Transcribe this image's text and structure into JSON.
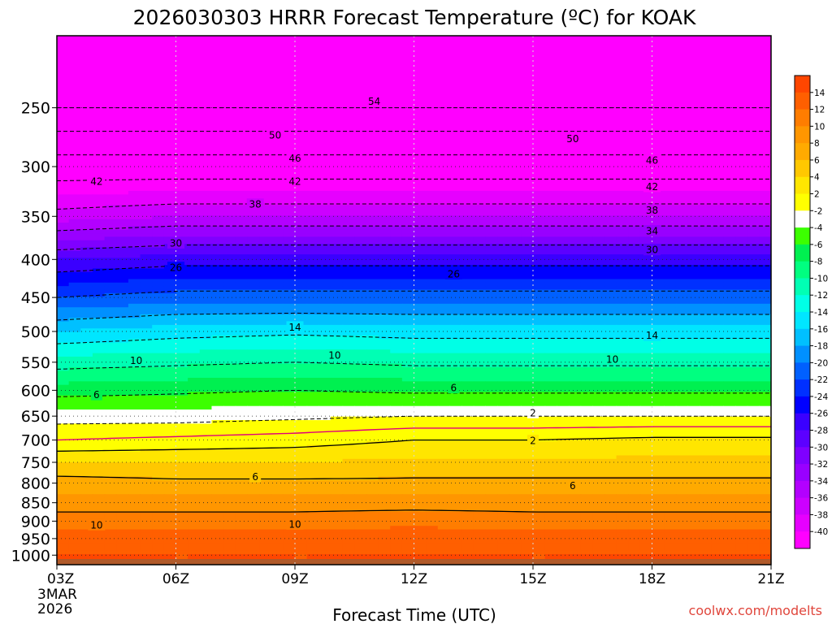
{
  "chart_data": {
    "type": "heatmap",
    "title": "2026030303 HRRR Forecast Temperature (ºC) for KOAK",
    "xlabel": "Forecast Time (UTC)",
    "credit": "coolwx.com/modelts",
    "x_ticks": [
      "03Z",
      "06Z",
      "09Z",
      "12Z",
      "15Z",
      "18Z",
      "21Z"
    ],
    "x_first_label_extra": [
      "3MAR",
      "2026"
    ],
    "x_hours": [
      3,
      21
    ],
    "y_ticks": [
      250,
      300,
      350,
      400,
      450,
      500,
      550,
      600,
      650,
      700,
      750,
      800,
      850,
      900,
      950,
      1000
    ],
    "y_scale": "log-pressure",
    "ylim": [
      200,
      1030
    ],
    "grid": true,
    "colorbar": {
      "levels": [
        -40,
        -38,
        -36,
        -34,
        -32,
        -30,
        -28,
        -26,
        -24,
        -22,
        -20,
        -18,
        -16,
        -14,
        -12,
        -10,
        -8,
        -6,
        -4,
        -2,
        2,
        4,
        6,
        8,
        10,
        12,
        14
      ],
      "colors": [
        "#ff00ff",
        "#e600ff",
        "#cc00ff",
        "#b300ff",
        "#9900ff",
        "#7f00ff",
        "#5c00ff",
        "#3a00ff",
        "#0000ff",
        "#0030ff",
        "#0060ff",
        "#0090ff",
        "#00c0ff",
        "#00e6ff",
        "#00ffe6",
        "#00ffb4",
        "#00ff80",
        "#00f050",
        "#3cff00",
        "#ffffff",
        "#ffff00",
        "#ffe600",
        "#ffc800",
        "#ffaa00",
        "#ff9600",
        "#ff7d00",
        "#ff5f00",
        "#ff4600"
      ],
      "position": "right"
    },
    "temperature_profiles": [
      {
        "hour": 3,
        "levels": [
          [
            200,
            -58
          ],
          [
            250,
            -54
          ],
          [
            300,
            -44
          ],
          [
            350,
            -37
          ],
          [
            400,
            -28
          ],
          [
            450,
            -22
          ],
          [
            500,
            -16
          ],
          [
            550,
            -11
          ],
          [
            600,
            -7
          ],
          [
            650,
            -3
          ],
          [
            700,
            0
          ],
          [
            750,
            4
          ],
          [
            800,
            7
          ],
          [
            850,
            9
          ],
          [
            900,
            11
          ],
          [
            950,
            13
          ],
          [
            1000,
            14
          ]
        ]
      },
      {
        "hour": 6,
        "levels": [
          [
            200,
            -58
          ],
          [
            250,
            -54
          ],
          [
            300,
            -44
          ],
          [
            350,
            -36
          ],
          [
            400,
            -27
          ],
          [
            450,
            -21
          ],
          [
            500,
            -15
          ],
          [
            550,
            -10.5
          ],
          [
            600,
            -6.5
          ],
          [
            650,
            -3
          ],
          [
            700,
            0.5
          ],
          [
            750,
            4
          ],
          [
            800,
            6.5
          ],
          [
            850,
            9
          ],
          [
            900,
            11
          ],
          [
            950,
            13
          ],
          [
            1000,
            14
          ]
        ]
      },
      {
        "hour": 9,
        "levels": [
          [
            200,
            -58
          ],
          [
            250,
            -54
          ],
          [
            300,
            -44
          ],
          [
            350,
            -36
          ],
          [
            400,
            -27
          ],
          [
            450,
            -21
          ],
          [
            500,
            -14.5
          ],
          [
            550,
            -10
          ],
          [
            600,
            -6
          ],
          [
            650,
            -2.5
          ],
          [
            700,
            1
          ],
          [
            750,
            4
          ],
          [
            800,
            6.5
          ],
          [
            850,
            9
          ],
          [
            900,
            11
          ],
          [
            950,
            13
          ],
          [
            1000,
            14
          ]
        ]
      },
      {
        "hour": 12,
        "levels": [
          [
            200,
            -58
          ],
          [
            250,
            -54
          ],
          [
            300,
            -44
          ],
          [
            350,
            -36
          ],
          [
            400,
            -27
          ],
          [
            450,
            -21
          ],
          [
            500,
            -15
          ],
          [
            550,
            -10.5
          ],
          [
            600,
            -6.5
          ],
          [
            650,
            -2
          ],
          [
            700,
            2
          ],
          [
            750,
            4.5
          ],
          [
            800,
            6.5
          ],
          [
            850,
            9
          ],
          [
            900,
            11.5
          ],
          [
            950,
            13
          ],
          [
            1000,
            14
          ]
        ]
      },
      {
        "hour": 15,
        "levels": [
          [
            200,
            -58
          ],
          [
            250,
            -54
          ],
          [
            300,
            -44
          ],
          [
            350,
            -36
          ],
          [
            400,
            -27
          ],
          [
            450,
            -21
          ],
          [
            500,
            -15
          ],
          [
            550,
            -10.5
          ],
          [
            600,
            -6.5
          ],
          [
            650,
            -2
          ],
          [
            700,
            2
          ],
          [
            750,
            4.5
          ],
          [
            800,
            6.5
          ],
          [
            850,
            9
          ],
          [
            900,
            11
          ],
          [
            950,
            13
          ],
          [
            1000,
            14
          ]
        ]
      },
      {
        "hour": 18,
        "levels": [
          [
            200,
            -58
          ],
          [
            250,
            -54
          ],
          [
            300,
            -44
          ],
          [
            350,
            -36
          ],
          [
            400,
            -27
          ],
          [
            450,
            -21
          ],
          [
            500,
            -15
          ],
          [
            550,
            -10.5
          ],
          [
            600,
            -6.5
          ],
          [
            650,
            -2
          ],
          [
            700,
            2.5
          ],
          [
            750,
            4.5
          ],
          [
            800,
            6.5
          ],
          [
            850,
            9
          ],
          [
            900,
            11
          ],
          [
            950,
            13
          ],
          [
            1000,
            14
          ]
        ]
      },
      {
        "hour": 21,
        "levels": [
          [
            200,
            -58
          ],
          [
            250,
            -54
          ],
          [
            300,
            -44
          ],
          [
            350,
            -36
          ],
          [
            400,
            -27
          ],
          [
            450,
            -21
          ],
          [
            500,
            -15
          ],
          [
            550,
            -10.5
          ],
          [
            600,
            -6.5
          ],
          [
            650,
            -2
          ],
          [
            700,
            2.5
          ],
          [
            750,
            4.5
          ],
          [
            800,
            6.5
          ],
          [
            850,
            9
          ],
          [
            900,
            11
          ],
          [
            950,
            13
          ],
          [
            1000,
            14
          ]
        ]
      }
    ],
    "contour_labels": [
      {
        "text": "54",
        "hour": 11,
        "pressure": 245
      },
      {
        "text": "50",
        "hour": 8.5,
        "pressure": 272
      },
      {
        "text": "50",
        "hour": 16,
        "pressure": 275
      },
      {
        "text": "46",
        "hour": 9,
        "pressure": 292
      },
      {
        "text": "46",
        "hour": 18,
        "pressure": 294
      },
      {
        "text": "42",
        "hour": 4,
        "pressure": 314
      },
      {
        "text": "42",
        "hour": 9,
        "pressure": 314
      },
      {
        "text": "42",
        "hour": 18,
        "pressure": 319
      },
      {
        "text": "38",
        "hour": 8,
        "pressure": 337
      },
      {
        "text": "38",
        "hour": 18,
        "pressure": 343
      },
      {
        "text": "34",
        "hour": 18,
        "pressure": 366
      },
      {
        "text": "30",
        "hour": 6,
        "pressure": 380
      },
      {
        "text": "30",
        "hour": 18,
        "pressure": 388
      },
      {
        "text": "26",
        "hour": 6,
        "pressure": 410
      },
      {
        "text": "26",
        "hour": 13,
        "pressure": 418
      },
      {
        "text": "14",
        "hour": 9,
        "pressure": 493
      },
      {
        "text": "14",
        "hour": 18,
        "pressure": 506
      },
      {
        "text": "10",
        "hour": 5,
        "pressure": 547
      },
      {
        "text": "10",
        "hour": 10,
        "pressure": 538
      },
      {
        "text": "10",
        "hour": 17,
        "pressure": 545
      },
      {
        "text": "6",
        "hour": 4,
        "pressure": 608
      },
      {
        "text": "6",
        "hour": 13,
        "pressure": 595
      },
      {
        "text": "2",
        "hour": 15,
        "pressure": 643
      },
      {
        "text": "2",
        "hour": 15,
        "pressure": 701
      },
      {
        "text": "6",
        "hour": 8,
        "pressure": 784
      },
      {
        "text": "6",
        "hour": 16,
        "pressure": 806
      },
      {
        "text": "10",
        "hour": 4,
        "pressure": 910
      },
      {
        "text": "10",
        "hour": 9,
        "pressure": 908
      }
    ]
  }
}
